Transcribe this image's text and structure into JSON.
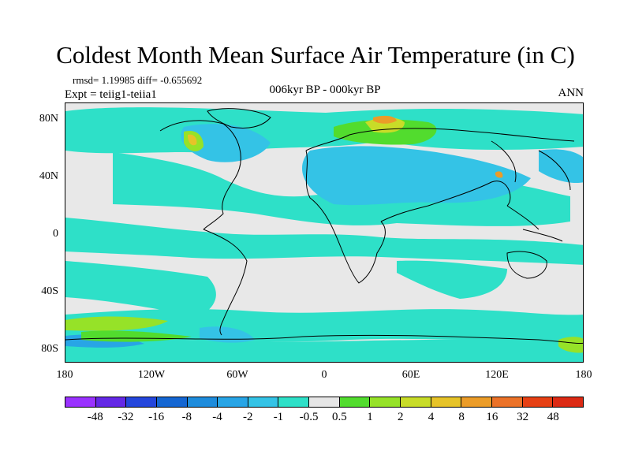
{
  "title": "Coldest Month Mean Surface Air Temperature (in C)",
  "stats": "rmsd= 1.19985 diff= -0.655692",
  "experiment": "Expt = teiig1-teiia1",
  "period": "006kyr BP - 000kyr BP",
  "season": "ANN",
  "lat_ticks": [
    "80N",
    "40N",
    "0",
    "40S",
    "80S"
  ],
  "lon_ticks": [
    "180",
    "120W",
    "60W",
    "0",
    "60E",
    "120E",
    "180"
  ],
  "colorbar": {
    "labels": [
      "-48",
      "-32",
      "-16",
      "-8",
      "-4",
      "-2",
      "-1",
      "-0.5",
      "0.5",
      "1",
      "2",
      "4",
      "8",
      "16",
      "32",
      "48"
    ],
    "colors": [
      "#9a32ff",
      "#6428e6",
      "#2446dc",
      "#1466d2",
      "#1e8cdc",
      "#28a5e6",
      "#34c3e6",
      "#2ee0c8",
      "#e6e6e6",
      "#52dc2e",
      "#96e228",
      "#c8dc28",
      "#e6c328",
      "#eb9c28",
      "#eb7228",
      "#e64014",
      "#dc2a14"
    ]
  },
  "chart_data": {
    "type": "heatmap",
    "map": "global filled contour map of coldest month mean surface air temperature difference",
    "xrange": [
      -180,
      180
    ],
    "yrange": [
      -90,
      90
    ],
    "levels": [
      -48,
      -32,
      -16,
      -8,
      -4,
      -2,
      -1,
      -0.5,
      0.5,
      1,
      2,
      4,
      8,
      16,
      32,
      48
    ]
  }
}
